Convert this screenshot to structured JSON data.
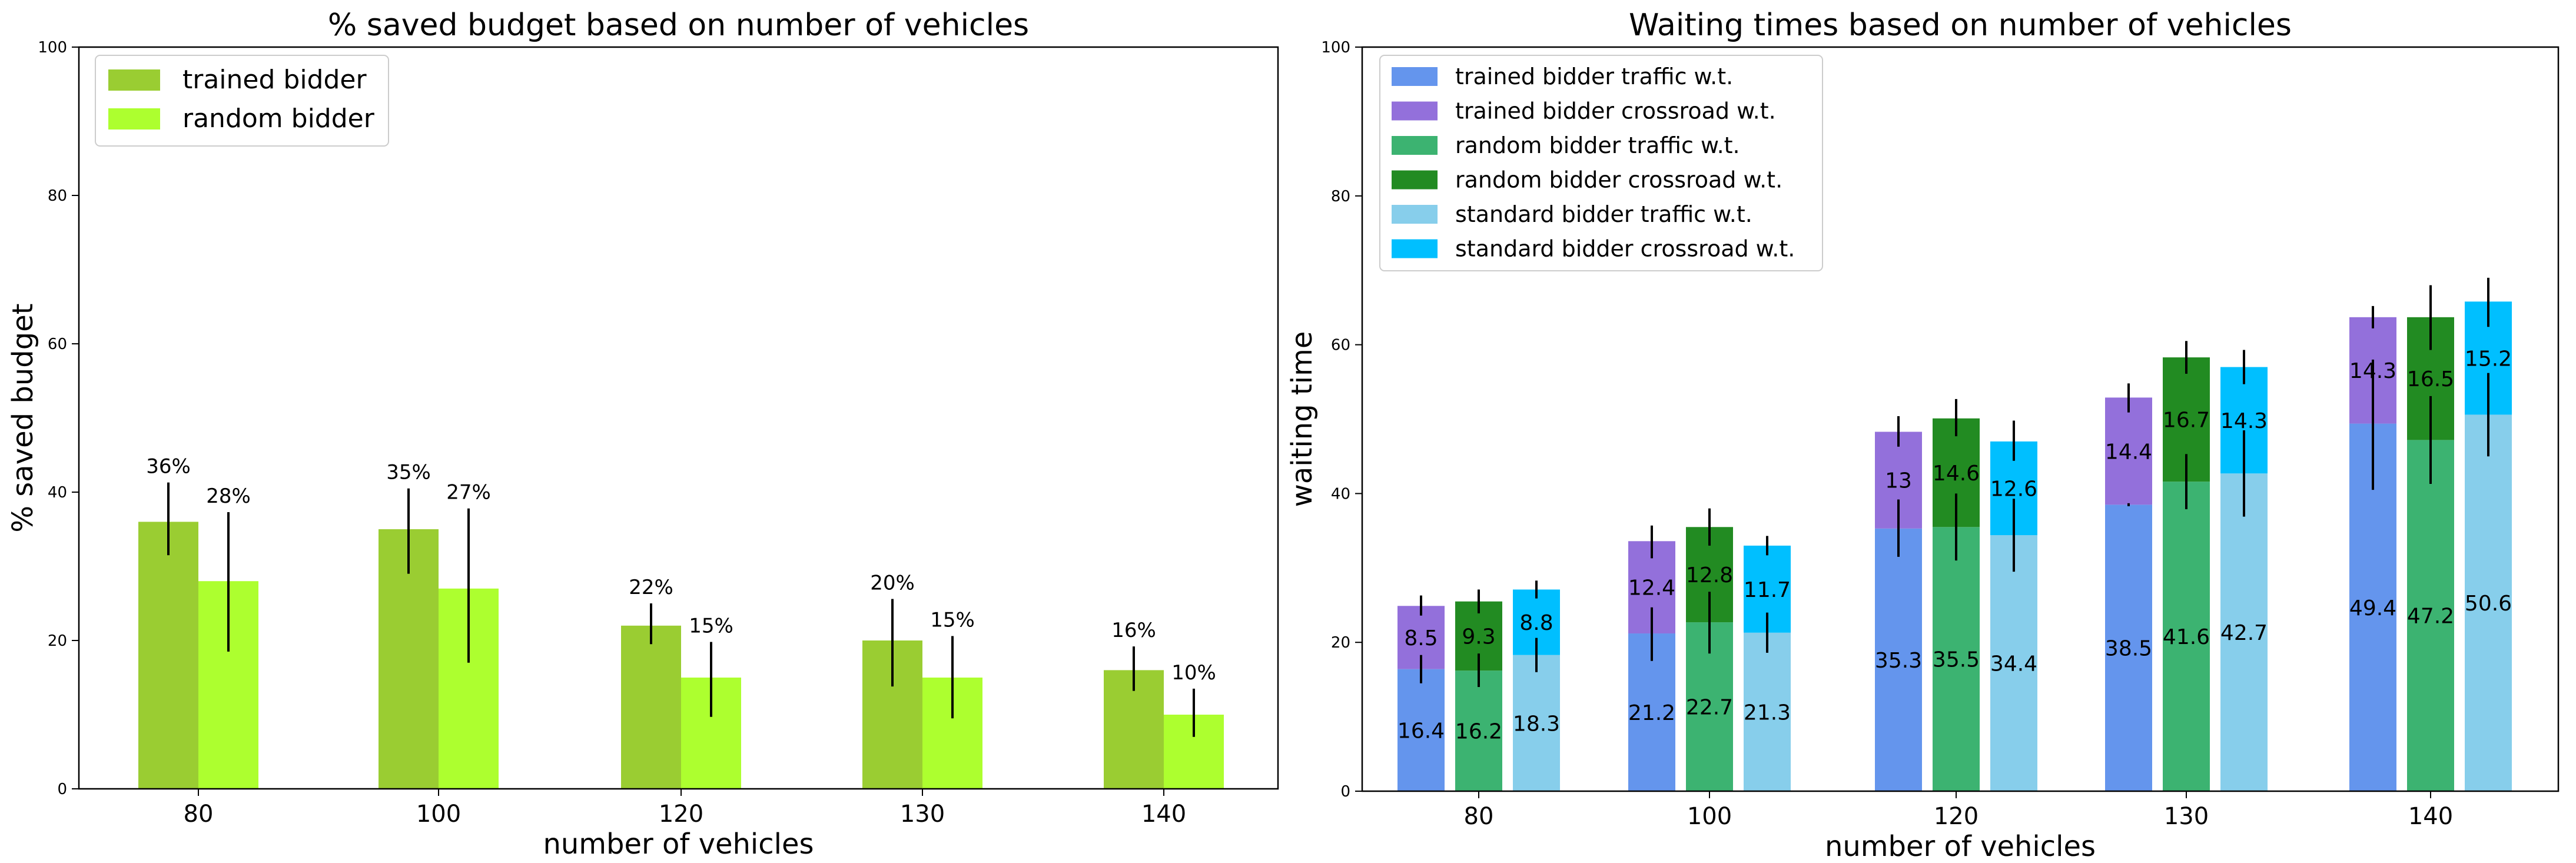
{
  "chart_data": [
    {
      "type": "bar",
      "title": "% saved budget based on number of vehicles",
      "xlabel": "number of vehicles",
      "ylabel": "% saved budget",
      "categories": [
        "80",
        "100",
        "120",
        "130",
        "140"
      ],
      "ylim": [
        0,
        100
      ],
      "yticks": [
        0,
        20,
        40,
        60,
        80,
        100
      ],
      "grid": false,
      "legend": "top-left",
      "series": [
        {
          "name": "trained bidder",
          "color": "#9acd32",
          "values": [
            36,
            35,
            22,
            20,
            16
          ],
          "labels": [
            "36%",
            "35%",
            "22%",
            "20%",
            "16%"
          ],
          "err_low": [
            31.5,
            29,
            19.5,
            13.8,
            13.2
          ],
          "err_high": [
            41.3,
            40.5,
            25,
            25.6,
            19.2
          ]
        },
        {
          "name": "random bidder",
          "color": "#adff2f",
          "values": [
            28,
            27,
            15,
            15,
            10
          ],
          "labels": [
            "28%",
            "27%",
            "15%",
            "15%",
            "10%"
          ],
          "err_low": [
            18.5,
            17,
            9.7,
            9.5,
            7
          ],
          "err_high": [
            37.3,
            37.8,
            19.8,
            20.6,
            13.5
          ]
        }
      ]
    },
    {
      "type": "bar",
      "stacked": true,
      "title": "Waiting times based on number of vehicles",
      "xlabel": "number of vehicles",
      "ylabel": "waiting time",
      "categories": [
        "80",
        "100",
        "120",
        "130",
        "140"
      ],
      "ylim": [
        0,
        100
      ],
      "yticks": [
        0,
        20,
        40,
        60,
        80,
        100
      ],
      "grid": false,
      "legend": "top-left",
      "legend_entries": [
        {
          "name": "trained bidder traffic w.t.",
          "color": "#6495ed"
        },
        {
          "name": "trained bidder crossroad w.t.",
          "color": "#9370db"
        },
        {
          "name": "random bidder traffic w.t.",
          "color": "#3cb371"
        },
        {
          "name": "random bidder crossroad w.t.",
          "color": "#228b22"
        },
        {
          "name": "standard bidder traffic w.t.",
          "color": "#87ceeb"
        },
        {
          "name": "standard bidder crossroad w.t.",
          "color": "#00bfff"
        }
      ],
      "groups": [
        {
          "name": "trained bidder",
          "traffic": [
            16.4,
            21.2,
            35.3,
            38.5,
            49.4
          ],
          "crossroad": [
            8.5,
            12.4,
            13,
            14.4,
            14.3
          ],
          "traffic_labels": [
            "16.4",
            "21.2",
            "35.3",
            "38.5",
            "49.4"
          ],
          "crossroad_labels": [
            "8.5",
            "12.4",
            "13",
            "14.4",
            "14.3"
          ],
          "traffic_err": [
            [
              14.5,
              18.3
            ],
            [
              17.5,
              24.7
            ],
            [
              31.5,
              39.2
            ],
            [
              38.3,
              38.7
            ],
            [
              40.5,
              58
            ]
          ],
          "total_err": [
            [
              23.6,
              26.3
            ],
            [
              31.3,
              35.7
            ],
            [
              46.3,
              50.4
            ],
            [
              50.9,
              54.8
            ],
            [
              62.2,
              65.2
            ]
          ]
        },
        {
          "name": "random bidder",
          "traffic": [
            16.2,
            22.7,
            35.5,
            41.6,
            47.2
          ],
          "crossroad": [
            9.3,
            12.8,
            14.6,
            16.7,
            16.5
          ],
          "traffic_labels": [
            "16.2",
            "22.7",
            "35.5",
            "41.6",
            "47.2"
          ],
          "crossroad_labels": [
            "9.3",
            "12.8",
            "14.6",
            "16.7",
            "16.5"
          ],
          "traffic_err": [
            [
              14,
              18.5
            ],
            [
              18.5,
              26.8
            ],
            [
              31,
              40
            ],
            [
              37.9,
              45.3
            ],
            [
              41.3,
              53.1
            ]
          ],
          "total_err": [
            [
              23.9,
              27.1
            ],
            [
              33,
              38
            ],
            [
              47.7,
              52.7
            ],
            [
              56.1,
              60.5
            ],
            [
              59.3,
              68
            ]
          ]
        },
        {
          "name": "standard bidder",
          "traffic": [
            18.3,
            21.3,
            34.4,
            42.7,
            50.6
          ],
          "crossroad": [
            8.8,
            11.7,
            12.6,
            14.3,
            15.2
          ],
          "traffic_labels": [
            "18.3",
            "21.3",
            "34.4",
            "42.7",
            "50.6"
          ],
          "crossroad_labels": [
            "8.8",
            "11.7",
            "12.6",
            "14.3",
            "15.2"
          ],
          "traffic_err": [
            [
              16,
              20.6
            ],
            [
              18.6,
              24
            ],
            [
              29.5,
              39.3
            ],
            [
              36.9,
              48.5
            ],
            [
              45,
              56.2
            ]
          ],
          "total_err": [
            [
              25.9,
              28.3
            ],
            [
              31.7,
              34.3
            ],
            [
              44.4,
              49.8
            ],
            [
              54.7,
              59.3
            ],
            [
              62.4,
              69
            ]
          ]
        }
      ]
    }
  ]
}
